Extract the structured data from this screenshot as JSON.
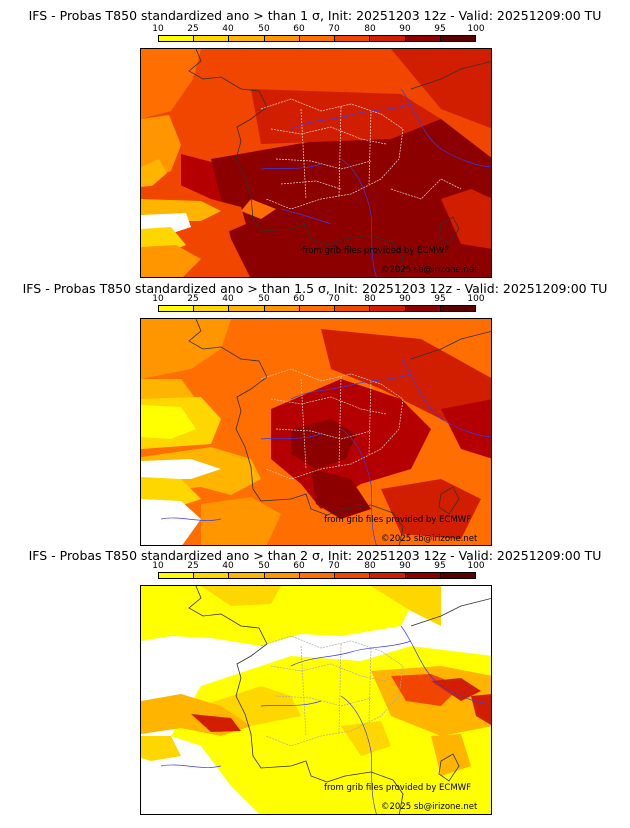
{
  "legend": {
    "ticks": [
      "10",
      "25",
      "40",
      "50",
      "60",
      "70",
      "80",
      "90",
      "95",
      "100"
    ],
    "colors": [
      "#ffff00",
      "#ffd700",
      "#ffb400",
      "#ff9600",
      "#ff6e00",
      "#f04600",
      "#d21e00",
      "#b40000",
      "#8c0000",
      "#5a0000"
    ]
  },
  "panels": [
    {
      "title": "IFS - Probas T850  standardized ano > than 1 σ, Init: 20251203 12z - Valid: 20251209:00 TU",
      "credit_source": "from grib files provided by ECMWF",
      "credit_copyright": "©2025 sb@irizone.net"
    },
    {
      "title": "IFS - Probas T850  standardized ano > than 1.5 σ, Init: 20251203 12z - Valid: 20251209:00 TU",
      "credit_source": "from grib files provided by ECMWF",
      "credit_copyright": "©2025 sb@irizone.net"
    },
    {
      "title": "IFS - Probas T850  standardized ano > than 2 σ, Init: 20251203 12z - Valid: 20251209:00 TU",
      "credit_source": "from grib files provided by ECMWF",
      "credit_copyright": "©2025 sb@irizone.net"
    }
  ]
}
